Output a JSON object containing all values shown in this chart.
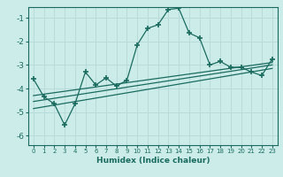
{
  "xlabel": "Humidex (Indice chaleur)",
  "bg_color": "#ccecea",
  "line_color": "#1a6b5e",
  "grid_color": "#b8dbd9",
  "x_ticks": [
    0,
    1,
    2,
    3,
    4,
    5,
    6,
    7,
    8,
    9,
    10,
    11,
    12,
    13,
    14,
    15,
    16,
    17,
    18,
    19,
    20,
    21,
    22,
    23
  ],
  "ylim": [
    -6.4,
    -0.55
  ],
  "xlim": [
    -0.5,
    23.5
  ],
  "main_x": [
    0,
    1,
    2,
    3,
    4,
    5,
    6,
    7,
    8,
    9,
    10,
    11,
    12,
    13,
    14,
    15,
    16,
    17,
    18,
    19,
    20,
    21,
    22,
    23
  ],
  "main_y": [
    -3.6,
    -4.35,
    -4.65,
    -5.55,
    -4.65,
    -3.3,
    -3.85,
    -3.55,
    -3.9,
    -3.65,
    -2.15,
    -1.45,
    -1.3,
    -0.65,
    -0.6,
    -1.65,
    -1.85,
    -3.0,
    -2.85,
    -3.1,
    -3.1,
    -3.3,
    -3.45,
    -2.75
  ],
  "line2_x": [
    0,
    23
  ],
  "line2_y": [
    -4.3,
    -2.9
  ],
  "line3_x": [
    0,
    23
  ],
  "line3_y": [
    -4.55,
    -3.0
  ],
  "line4_x": [
    0,
    23
  ],
  "line4_y": [
    -4.85,
    -3.15
  ],
  "yticks": [
    -6,
    -5,
    -4,
    -3,
    -2,
    -1
  ],
  "ytick_labels": [
    "-6",
    "-5",
    "-4",
    "-3",
    "-2",
    "-1"
  ]
}
